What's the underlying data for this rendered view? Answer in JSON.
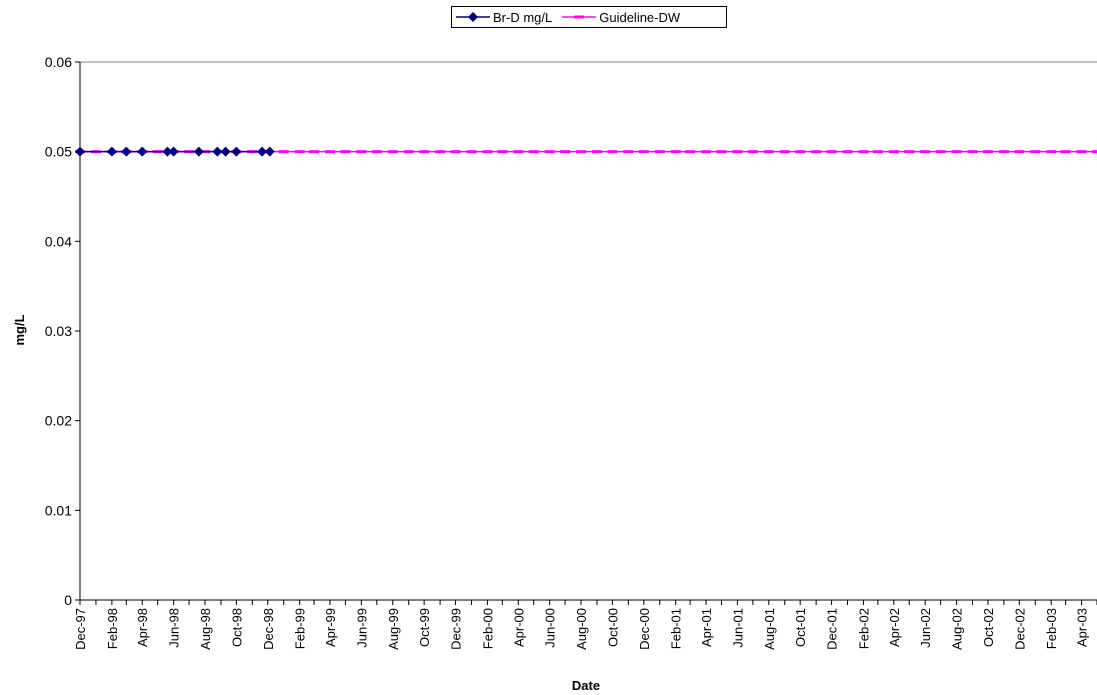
{
  "chart_data": {
    "type": "line",
    "title": "",
    "xlabel": "Date",
    "ylabel": "mg/L",
    "ylim": [
      0,
      0.06
    ],
    "yticks": [
      0,
      0.01,
      0.02,
      0.03,
      0.04,
      0.05,
      0.06
    ],
    "ytick_labels": [
      "0",
      "0.01",
      "0.02",
      "0.03",
      "0.04",
      "0.05",
      "0.06"
    ],
    "xlim": [
      "1997-12-01",
      "2003-05-01"
    ],
    "xtick_labels": [
      "Dec-97",
      "Feb-98",
      "Apr-98",
      "Jun-98",
      "Aug-98",
      "Oct-98",
      "Dec-98",
      "Feb-99",
      "Apr-99",
      "Jun-99",
      "Aug-99",
      "Oct-99",
      "Dec-99",
      "Feb-00",
      "Apr-00",
      "Jun-00",
      "Aug-00",
      "Oct-00",
      "Dec-00",
      "Feb-01",
      "Apr-01",
      "Jun-01",
      "Aug-01",
      "Oct-01",
      "Dec-01",
      "Feb-02",
      "Apr-02",
      "Jun-02",
      "Aug-02",
      "Oct-02",
      "Dec-02",
      "Feb-03",
      "Apr-03"
    ],
    "grid": {
      "y_major": false,
      "top_line": true
    },
    "legend_position": "top-center",
    "series": [
      {
        "name": "Br-D mg/L",
        "color": "#000080",
        "marker": "diamond",
        "x": [
          "1997-12-01",
          "1998-02-01",
          "1998-03-01",
          "1998-04-01",
          "1998-05-20",
          "1998-06-01",
          "1998-07-20",
          "1998-08-25",
          "1998-09-10",
          "1998-10-01",
          "1998-11-20",
          "1998-12-05"
        ],
        "values": [
          0.05,
          0.05,
          0.05,
          0.05,
          0.05,
          0.05,
          0.05,
          0.05,
          0.05,
          0.05,
          0.05,
          0.05
        ]
      },
      {
        "name": "Guideline-DW",
        "color": "#ff00ff",
        "marker": "dash",
        "x_range": [
          "1997-12-01",
          "2003-05-01"
        ],
        "values_constant": 0.05
      }
    ]
  }
}
